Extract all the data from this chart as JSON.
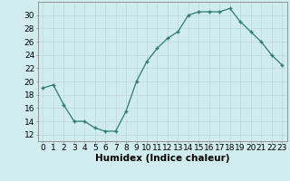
{
  "x": [
    0,
    1,
    2,
    3,
    4,
    5,
    6,
    7,
    8,
    9,
    10,
    11,
    12,
    13,
    14,
    15,
    16,
    17,
    18,
    19,
    20,
    21,
    22,
    23
  ],
  "y": [
    19,
    19.5,
    16.5,
    14,
    14,
    13,
    12.5,
    12.5,
    15.5,
    20,
    23,
    25,
    26.5,
    27.5,
    30,
    30.5,
    30.5,
    30.5,
    31,
    29,
    27.5,
    26,
    24,
    22.5
  ],
  "line_color": "#2e7d6e",
  "marker_color": "#2e7d6e",
  "bg_color": "#d0ecee",
  "grid_color": "#c0d8da",
  "xlabel": "Humidex (Indice chaleur)",
  "xlabel_fontsize": 7.5,
  "tick_fontsize": 6.5,
  "ylim": [
    11,
    32
  ],
  "xlim": [
    -0.5,
    23.5
  ],
  "yticks": [
    12,
    14,
    16,
    18,
    20,
    22,
    24,
    26,
    28,
    30
  ],
  "xticks": [
    0,
    1,
    2,
    3,
    4,
    5,
    6,
    7,
    8,
    9,
    10,
    11,
    12,
    13,
    14,
    15,
    16,
    17,
    18,
    19,
    20,
    21,
    22,
    23
  ]
}
